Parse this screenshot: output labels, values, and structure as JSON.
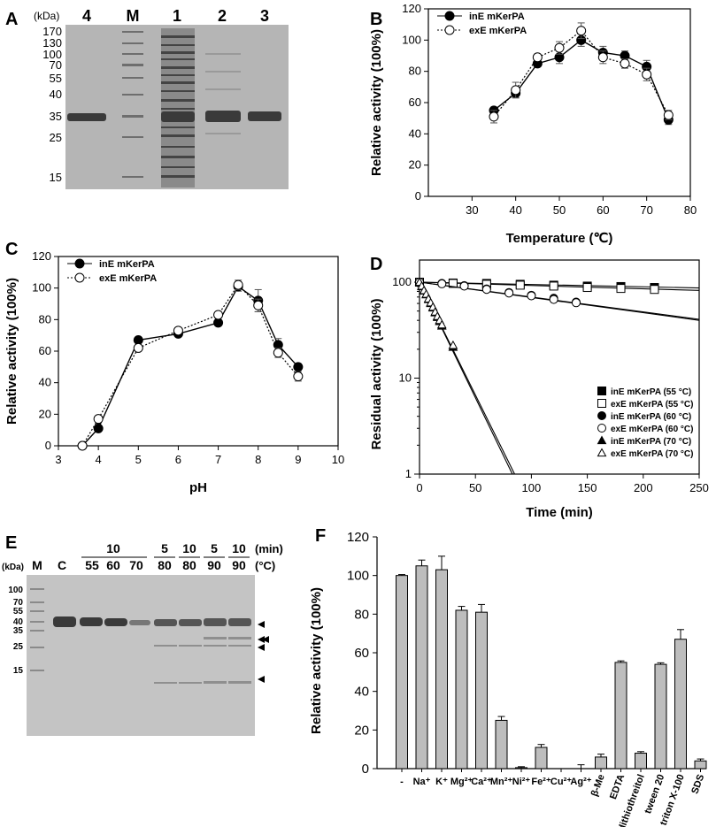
{
  "panels": {
    "A": {
      "label": "A",
      "unit": "(kDa)",
      "lanes": [
        "4",
        "M",
        "1",
        "2",
        "3"
      ],
      "markers": [
        "170",
        "130",
        "100",
        "70",
        "55",
        "40",
        "35",
        "25",
        "15"
      ]
    },
    "E": {
      "label": "E",
      "unit": "(kDa)",
      "lanes": [
        "M",
        "C",
        "55",
        "60",
        "70",
        "80",
        "80",
        "90",
        "90"
      ],
      "time_groups": [
        "10",
        "5",
        "10",
        "5",
        "10"
      ],
      "time_unit": "(min)",
      "temp_unit": "(°C)",
      "markers": [
        "100",
        "70",
        "55",
        "40",
        "35",
        "25",
        "15"
      ]
    }
  },
  "chart_data": [
    {
      "panel": "B",
      "type": "line",
      "xlabel": "Temperature (℃)",
      "ylabel": "Relative activity (100%)",
      "xlim": [
        20,
        80
      ],
      "ylim": [
        0,
        120
      ],
      "xticks": [
        "30",
        "40",
        "50",
        "60",
        "70",
        "80"
      ],
      "yticks": [
        "0",
        "20",
        "40",
        "60",
        "80",
        "100",
        "120"
      ],
      "legend_position": "top-left",
      "x": [
        35,
        40,
        45,
        50,
        55,
        60,
        65,
        70,
        75
      ],
      "series": [
        {
          "name": "inE mKerPA",
          "values": [
            55,
            66,
            85,
            89,
            100,
            92,
            90,
            83,
            49
          ],
          "errors": [
            2,
            3,
            2,
            4,
            4,
            4,
            3,
            4,
            3
          ]
        },
        {
          "name": "exE mKerPA",
          "values": [
            51,
            68,
            89,
            95,
            106,
            89,
            85,
            78,
            52
          ],
          "errors": [
            4,
            5,
            2,
            4,
            5,
            4,
            3,
            4,
            3
          ]
        }
      ]
    },
    {
      "panel": "C",
      "type": "line",
      "xlabel": "pH",
      "ylabel": "Relative activity (100%)",
      "xlim": [
        3,
        10
      ],
      "ylim": [
        0,
        120
      ],
      "xticks": [
        "3",
        "4",
        "5",
        "6",
        "7",
        "8",
        "9",
        "10"
      ],
      "yticks": [
        "0",
        "20",
        "40",
        "60",
        "80",
        "100",
        "120"
      ],
      "legend_position": "top-left",
      "x": [
        3.6,
        4,
        5,
        6,
        7,
        7.5,
        8,
        8.5,
        9
      ],
      "series": [
        {
          "name": "inE mKerPA",
          "values": [
            0,
            11,
            67,
            71,
            78,
            101,
            92,
            64,
            50
          ],
          "errors": [
            0,
            1,
            1,
            1,
            2,
            3,
            7,
            4,
            2
          ]
        },
        {
          "name": "exE mKerPA",
          "values": [
            0,
            17,
            62,
            73,
            83,
            102,
            89,
            59,
            44
          ],
          "errors": [
            0,
            1,
            1,
            1,
            2,
            3,
            4,
            3,
            3
          ]
        }
      ]
    },
    {
      "panel": "D",
      "type": "scatter",
      "xlabel": "Time (min)",
      "ylabel": "Residual activity (100%)",
      "yscale": "log",
      "xlim": [
        0,
        250
      ],
      "ylim": [
        1,
        100
      ],
      "xticks": [
        "0",
        "50",
        "100",
        "150",
        "200",
        "250"
      ],
      "yticks": [
        "1",
        "10",
        "100"
      ],
      "legend_position": "lower-right",
      "series": [
        {
          "name": "inE mKerPA (55 °C)",
          "marker": "filled-square",
          "x": [
            0,
            30,
            60,
            90,
            120,
            150,
            180,
            210
          ],
          "values": [
            100,
            98,
            97,
            95,
            93,
            91,
            90,
            88
          ],
          "fit_end": [
            250,
            87
          ]
        },
        {
          "name": "exE mKerPA (55 °C)",
          "marker": "open-square",
          "x": [
            0,
            30,
            60,
            90,
            120,
            150,
            180,
            210
          ],
          "values": [
            100,
            97,
            95,
            93,
            91,
            88,
            86,
            84
          ],
          "fit_end": [
            250,
            82
          ]
        },
        {
          "name": "inE mKerPA (60 °C)",
          "marker": "filled-circle",
          "x": [
            0,
            20,
            40,
            60,
            80,
            100,
            120,
            140
          ],
          "values": [
            100,
            97,
            92,
            85,
            78,
            73,
            68,
            62
          ],
          "fit_end": [
            250,
            41
          ]
        },
        {
          "name": "exE mKerPA (60 °C)",
          "marker": "open-circle",
          "x": [
            0,
            20,
            40,
            60,
            80,
            100,
            120,
            140
          ],
          "values": [
            100,
            96,
            91,
            84,
            77,
            72,
            66,
            61
          ],
          "fit_end": [
            250,
            40
          ]
        },
        {
          "name": "inE mKerPA (70 °C)",
          "marker": "filled-triangle",
          "x": [
            0,
            2,
            4,
            6,
            8,
            10,
            12,
            14,
            16,
            18,
            20,
            30
          ],
          "values": [
            100,
            90,
            81,
            74,
            66,
            60,
            54,
            48,
            43,
            39,
            35,
            21
          ],
          "fit_end": [
            83,
            1
          ]
        },
        {
          "name": "exE mKerPA (70 °C)",
          "marker": "open-triangle",
          "x": [
            0,
            2,
            4,
            6,
            8,
            10,
            12,
            14,
            16,
            18,
            20,
            30
          ],
          "values": [
            100,
            91,
            82,
            75,
            67,
            61,
            55,
            49,
            44,
            40,
            36,
            22
          ],
          "fit_end": [
            85,
            1
          ]
        }
      ]
    },
    {
      "panel": "F",
      "type": "bar",
      "xlabel": "",
      "ylabel": "Relative activity (100%)",
      "ylim": [
        0,
        120
      ],
      "yticks": [
        "0",
        "20",
        "40",
        "60",
        "80",
        "100",
        "120"
      ],
      "categories": [
        "-",
        "Na⁺",
        "K⁺",
        "Mg²⁺",
        "Ca²⁺",
        "Mn²⁺",
        "Ni²⁺",
        "Fe²⁺",
        "Cu²⁺",
        "Ag²⁺",
        "β-Me",
        "EDTA",
        "DL-dithiothreitol",
        "tween 20",
        "triton X-100",
        "SDS"
      ],
      "values": [
        100,
        105,
        103,
        82,
        81,
        25,
        0.5,
        11,
        0,
        0,
        6,
        55,
        8,
        54,
        67,
        4
      ],
      "errors": [
        0.5,
        3,
        7,
        2,
        4,
        2,
        0.5,
        1.5,
        0,
        2,
        1.5,
        0.8,
        0.8,
        0.8,
        5,
        1
      ]
    }
  ]
}
